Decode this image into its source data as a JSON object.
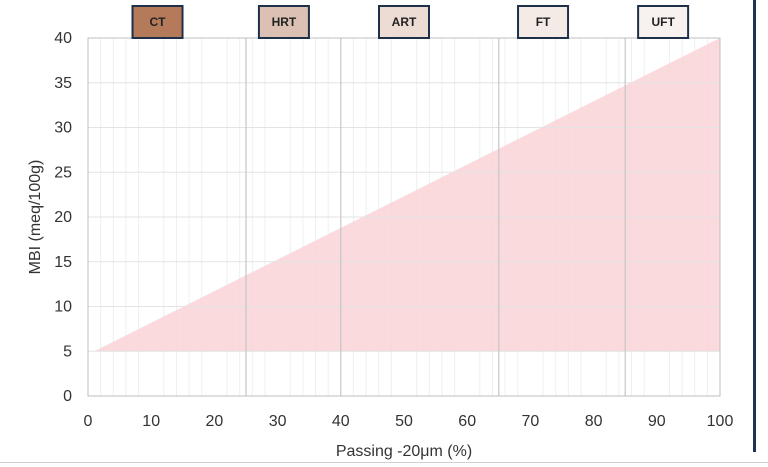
{
  "chart_data": {
    "type": "area",
    "xlabel": "Passing -20μm (%)",
    "ylabel": "MBI (meq/100g)",
    "xlim": [
      0,
      100
    ],
    "ylim": [
      0,
      40
    ],
    "xticks": [
      "0",
      "10",
      "20",
      "30",
      "40",
      "50",
      "60",
      "70",
      "80",
      "90",
      "100"
    ],
    "yticks": [
      "0",
      "5",
      "10",
      "15",
      "20",
      "25",
      "30",
      "35",
      "40"
    ],
    "grid": true,
    "region": {
      "x": [
        1,
        100,
        100,
        1
      ],
      "y": [
        5,
        40,
        5,
        5
      ],
      "color": "#f9d3d6"
    },
    "boundaries": [
      25,
      40,
      65,
      85
    ],
    "classes": [
      {
        "label": "CT",
        "center": 11,
        "color": "#b47a5a"
      },
      {
        "label": "HRT",
        "center": 31,
        "color": "#dcc0b3"
      },
      {
        "label": "ART",
        "center": 50,
        "color": "#ecdcd4"
      },
      {
        "label": "FT",
        "center": 72,
        "color": "#f5ebe6"
      },
      {
        "label": "UFT",
        "center": 91,
        "color": "#f7f2ef"
      }
    ]
  }
}
